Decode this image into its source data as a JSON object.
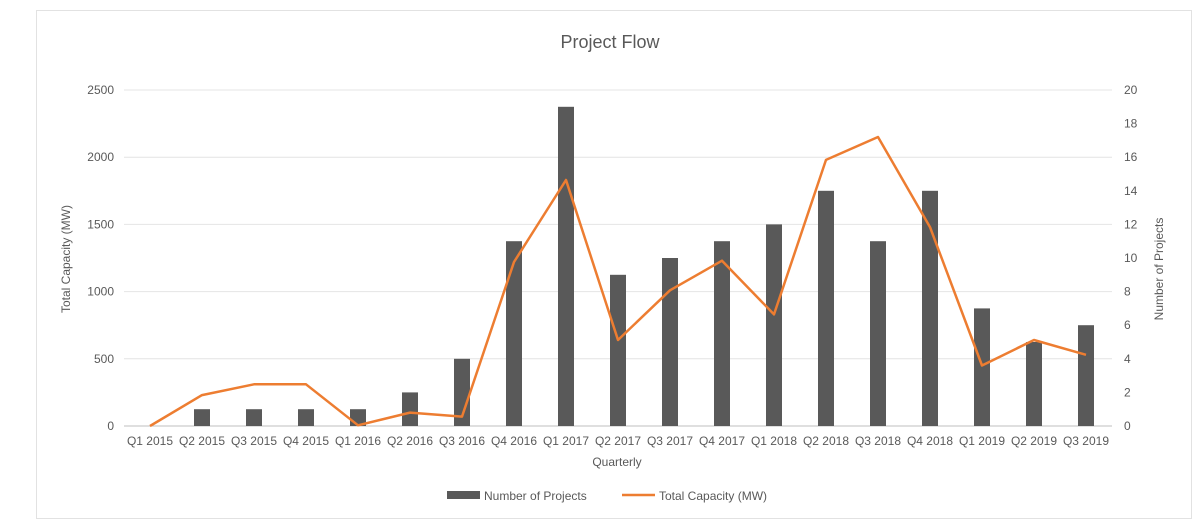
{
  "chart_data": {
    "type": "bar",
    "title": "Project Flow",
    "xlabel": "Quarterly",
    "ylabel_left": "Total Capacity (MW)",
    "ylabel_right": "Number of Projects",
    "ylim_left": [
      0,
      2500
    ],
    "yticks_left": [
      0,
      500,
      1000,
      1500,
      2000,
      2500
    ],
    "ylim_right": [
      0,
      20
    ],
    "yticks_right": [
      0,
      2,
      4,
      6,
      8,
      10,
      12,
      14,
      16,
      18,
      20
    ],
    "grid": true,
    "legend_position": "bottom",
    "categories": [
      "Q1 2015",
      "Q2 2015",
      "Q3 2015",
      "Q4 2015",
      "Q1 2016",
      "Q2 2016",
      "Q3 2016",
      "Q4 2016",
      "Q1 2017",
      "Q2 2017",
      "Q3 2017",
      "Q4 2017",
      "Q1 2018",
      "Q2 2018",
      "Q3 2018",
      "Q4 2018",
      "Q1 2019",
      "Q2 2019",
      "Q3 2019"
    ],
    "series": [
      {
        "name": "Number of Projects",
        "kind": "bar",
        "axis": "right",
        "color": "#595959",
        "values": [
          0,
          1,
          1,
          1,
          1,
          2,
          4,
          11,
          19,
          9,
          10,
          11,
          12,
          14,
          11,
          14,
          7,
          5,
          6
        ]
      },
      {
        "name": "Total Capacity (MW)",
        "kind": "line",
        "axis": "left",
        "color": "#ED7D31",
        "values": [
          0,
          230,
          310,
          310,
          5,
          100,
          70,
          1220,
          1830,
          640,
          1010,
          1230,
          830,
          1980,
          2150,
          1480,
          450,
          640,
          530
        ]
      }
    ]
  }
}
